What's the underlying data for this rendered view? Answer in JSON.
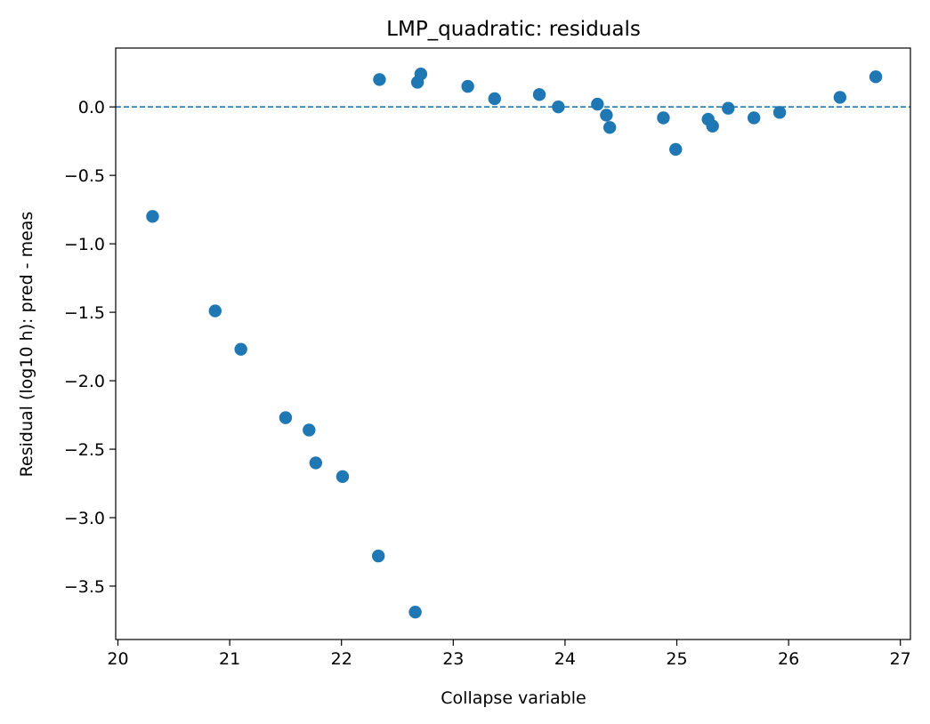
{
  "chart_data": {
    "type": "scatter",
    "title": "LMP_quadratic: residuals",
    "xlabel": "Collapse variable",
    "ylabel": "Residual (log10 h): pred - meas",
    "xlim": [
      19.98,
      27.09
    ],
    "ylim": [
      -3.89,
      0.43
    ],
    "xticks": [
      20,
      21,
      22,
      23,
      24,
      25,
      26,
      27
    ],
    "xtick_labels": [
      "20",
      "21",
      "22",
      "23",
      "24",
      "25",
      "26",
      "27"
    ],
    "yticks": [
      0.0,
      -0.5,
      -1.0,
      -1.5,
      -2.0,
      -2.5,
      -3.0,
      -3.5
    ],
    "ytick_labels": [
      "0.0",
      "−0.5",
      "−1.0",
      "−1.5",
      "−2.0",
      "−2.5",
      "−3.0",
      "−3.5"
    ],
    "grid": false,
    "reference_line": {
      "y": 0.0,
      "style": "dashed"
    },
    "colors": {
      "points": "#1f77b4",
      "refline": "#1f77b4",
      "axes": "#000000"
    },
    "points": [
      {
        "x": 20.31,
        "y": -0.8
      },
      {
        "x": 20.87,
        "y": -1.49
      },
      {
        "x": 21.1,
        "y": -1.77
      },
      {
        "x": 21.5,
        "y": -2.27
      },
      {
        "x": 21.71,
        "y": -2.36
      },
      {
        "x": 21.77,
        "y": -2.6
      },
      {
        "x": 22.01,
        "y": -2.7
      },
      {
        "x": 22.33,
        "y": -3.28
      },
      {
        "x": 22.34,
        "y": 0.2
      },
      {
        "x": 22.66,
        "y": -3.69
      },
      {
        "x": 22.68,
        "y": 0.18
      },
      {
        "x": 22.71,
        "y": 0.24
      },
      {
        "x": 23.13,
        "y": 0.15
      },
      {
        "x": 23.37,
        "y": 0.06
      },
      {
        "x": 23.77,
        "y": 0.09
      },
      {
        "x": 23.94,
        "y": 0.0
      },
      {
        "x": 24.29,
        "y": 0.02
      },
      {
        "x": 24.37,
        "y": -0.06
      },
      {
        "x": 24.4,
        "y": -0.15
      },
      {
        "x": 24.88,
        "y": -0.08
      },
      {
        "x": 24.99,
        "y": -0.31
      },
      {
        "x": 25.28,
        "y": -0.09
      },
      {
        "x": 25.32,
        "y": -0.14
      },
      {
        "x": 25.46,
        "y": -0.01
      },
      {
        "x": 25.69,
        "y": -0.08
      },
      {
        "x": 25.92,
        "y": -0.04
      },
      {
        "x": 26.46,
        "y": 0.07
      },
      {
        "x": 26.78,
        "y": 0.22
      }
    ]
  }
}
